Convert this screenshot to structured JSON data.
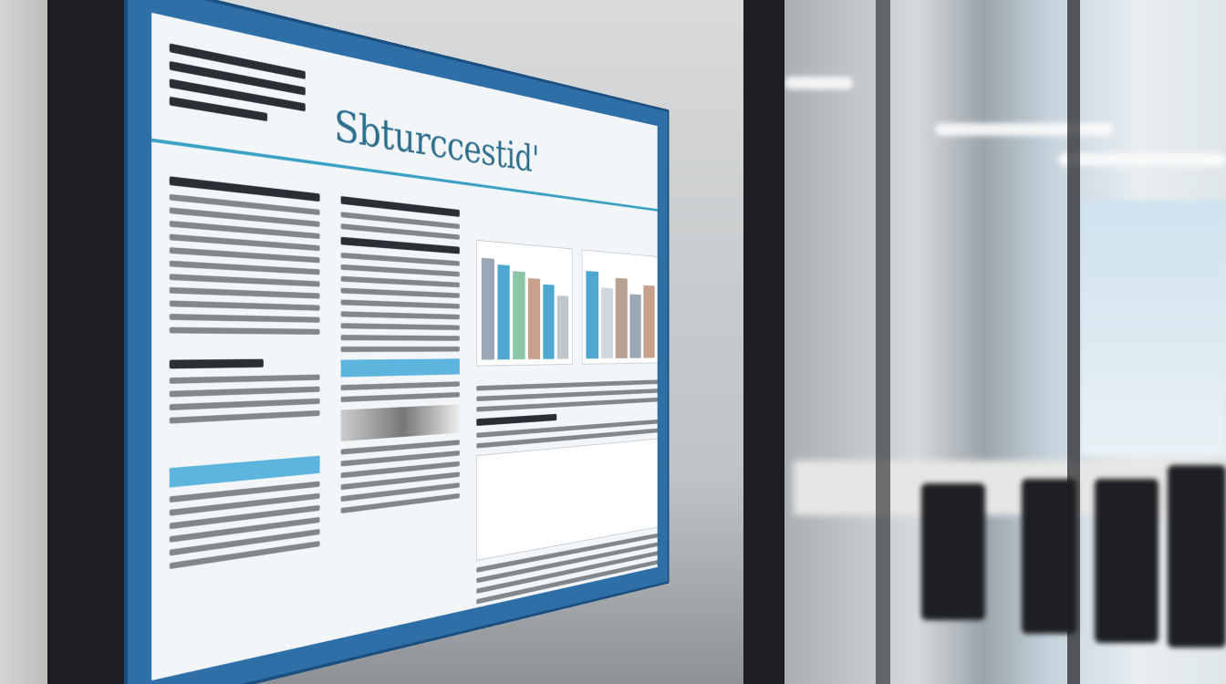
{
  "poster": {
    "title": "Sbturccestid'",
    "accent_color": "#2f6fa8",
    "title_color": "#2d6e8c"
  }
}
